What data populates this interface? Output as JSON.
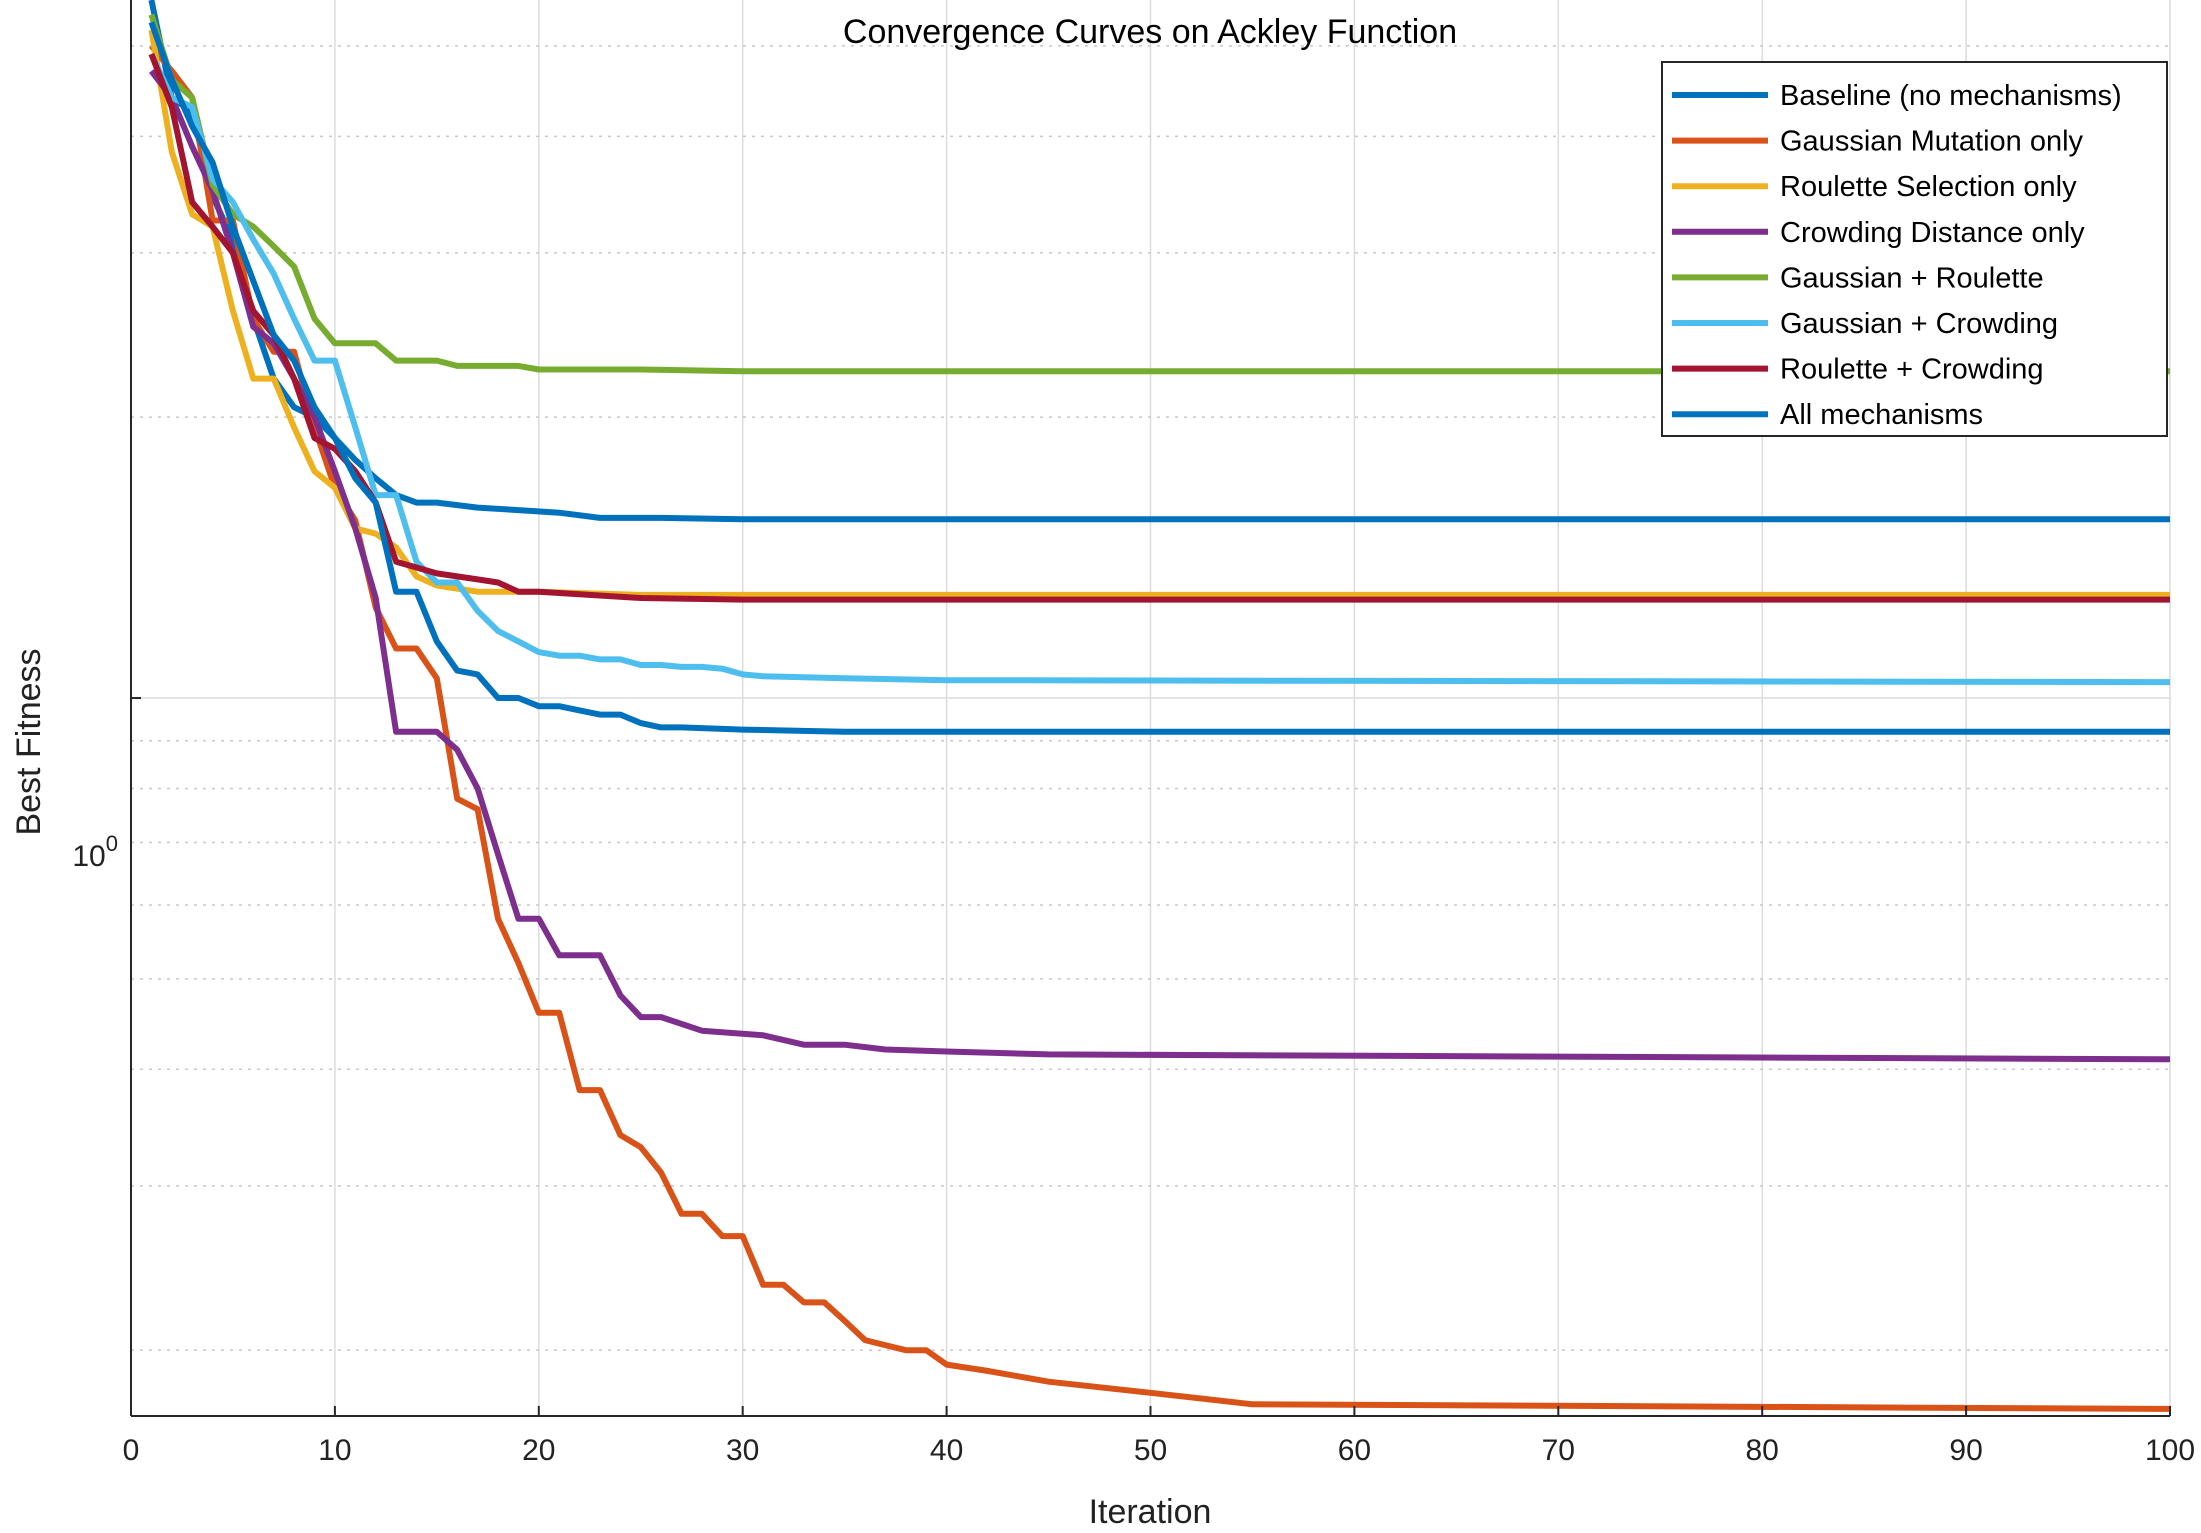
{
  "chart_data": {
    "type": "line",
    "title": "Convergence Curves on Ackley Function",
    "xlabel": "Iteration",
    "ylabel": "Best Fitness",
    "xlim": [
      0,
      100
    ],
    "ylim": [
      0.17,
      5.6
    ],
    "yscale": "log",
    "x_ticks": [
      0,
      10,
      20,
      30,
      40,
      50,
      60,
      70,
      80,
      90,
      100
    ],
    "y_tick_label": {
      "base": "10",
      "exponent": "0",
      "value": 1
    },
    "grid": true,
    "legend_position": "top-right",
    "series": [
      {
        "name": "Baseline (no mechanisms)",
        "color": "#0072BD",
        "x": [
          1,
          2,
          3,
          4,
          5,
          6,
          7,
          8,
          9,
          10,
          11,
          12,
          13,
          14,
          15,
          17,
          19,
          21,
          23,
          26,
          30,
          35,
          40,
          100
        ],
        "y": [
          5.6,
          4.4,
          4.25,
          3.45,
          3.1,
          2.55,
          2.2,
          2.05,
          2.0,
          1.9,
          1.8,
          1.72,
          1.65,
          1.62,
          1.62,
          1.6,
          1.59,
          1.58,
          1.56,
          1.56,
          1.555,
          1.555,
          1.555,
          1.555
        ]
      },
      {
        "name": "Gaussian Mutation only",
        "color": "#D95319",
        "x": [
          1,
          2,
          3,
          4,
          5,
          6,
          7,
          8,
          9,
          10,
          11,
          12,
          13,
          14,
          15,
          16,
          17,
          18,
          19,
          20,
          21,
          22,
          23,
          24,
          25,
          26,
          27,
          28,
          29,
          30,
          31,
          32,
          33,
          34,
          35,
          36,
          38,
          39,
          40,
          42,
          45,
          50,
          55,
          100
        ],
        "y": [
          5.0,
          4.7,
          4.4,
          3.25,
          3.25,
          2.55,
          2.35,
          2.35,
          1.95,
          1.68,
          1.55,
          1.25,
          1.13,
          1.13,
          1.05,
          0.78,
          0.76,
          0.58,
          0.52,
          0.46,
          0.46,
          0.38,
          0.38,
          0.34,
          0.33,
          0.31,
          0.28,
          0.28,
          0.265,
          0.265,
          0.235,
          0.235,
          0.225,
          0.225,
          0.215,
          0.205,
          0.2,
          0.2,
          0.193,
          0.19,
          0.185,
          0.18,
          0.175,
          0.173
        ]
      },
      {
        "name": "Roulette Selection only",
        "color": "#EDB120",
        "x": [
          1,
          2,
          3,
          4,
          5,
          6,
          7,
          8,
          9,
          10,
          11,
          12,
          13,
          14,
          15,
          16,
          17,
          20,
          25,
          100
        ],
        "y": [
          5.2,
          3.85,
          3.3,
          3.2,
          2.6,
          2.2,
          2.2,
          1.95,
          1.75,
          1.68,
          1.52,
          1.5,
          1.45,
          1.35,
          1.32,
          1.31,
          1.3,
          1.3,
          1.29,
          1.29
        ]
      },
      {
        "name": "Crowding Distance only",
        "color": "#7E2F8E",
        "x": [
          1,
          2,
          3,
          4,
          5,
          6,
          7,
          8,
          9,
          10,
          11,
          12,
          13,
          14,
          15,
          16,
          17,
          18,
          19,
          20,
          21,
          22,
          23,
          24,
          25,
          26,
          28,
          31,
          33,
          35,
          37,
          40,
          45,
          100
        ],
        "y": [
          4.7,
          4.4,
          3.9,
          3.5,
          3.0,
          2.5,
          2.4,
          2.2,
          2.0,
          1.75,
          1.52,
          1.28,
          0.92,
          0.92,
          0.92,
          0.88,
          0.8,
          0.68,
          0.58,
          0.58,
          0.53,
          0.53,
          0.53,
          0.48,
          0.455,
          0.455,
          0.44,
          0.435,
          0.425,
          0.425,
          0.42,
          0.418,
          0.415,
          0.41
        ]
      },
      {
        "name": "Gaussian + Roulette",
        "color": "#77AC30",
        "x": [
          1,
          2,
          3,
          4,
          5,
          6,
          7,
          8,
          9,
          10,
          11,
          12,
          13,
          14,
          15,
          16,
          17,
          18,
          19,
          20,
          25,
          30,
          100
        ],
        "y": [
          5.4,
          4.6,
          4.4,
          3.55,
          3.3,
          3.2,
          3.05,
          2.9,
          2.55,
          2.4,
          2.4,
          2.4,
          2.3,
          2.3,
          2.3,
          2.27,
          2.27,
          2.27,
          2.27,
          2.25,
          2.25,
          2.24,
          2.24
        ]
      },
      {
        "name": "Gaussian + Crowding",
        "color": "#4DBEEE",
        "x": [
          1,
          2,
          3,
          4,
          5,
          6,
          7,
          8,
          9,
          10,
          11,
          12,
          13,
          14,
          15,
          16,
          17,
          18,
          19,
          20,
          21,
          22,
          23,
          24,
          25,
          26,
          27,
          28,
          29,
          30,
          31,
          35,
          40,
          100
        ],
        "y": [
          4.9,
          4.4,
          4.3,
          3.6,
          3.4,
          3.1,
          2.85,
          2.55,
          2.3,
          2.3,
          1.95,
          1.65,
          1.65,
          1.4,
          1.33,
          1.33,
          1.24,
          1.18,
          1.15,
          1.12,
          1.11,
          1.11,
          1.1,
          1.1,
          1.085,
          1.085,
          1.08,
          1.08,
          1.075,
          1.06,
          1.055,
          1.05,
          1.045,
          1.04
        ]
      },
      {
        "name": "Roulette + Crowding",
        "color": "#A2142F",
        "x": [
          1,
          2,
          3,
          4,
          5,
          6,
          7,
          8,
          9,
          10,
          11,
          12,
          13,
          14,
          15,
          16,
          17,
          18,
          19,
          20,
          25,
          30,
          100
        ],
        "y": [
          4.9,
          4.3,
          3.4,
          3.2,
          3.0,
          2.6,
          2.45,
          2.2,
          1.9,
          1.85,
          1.75,
          1.62,
          1.4,
          1.38,
          1.36,
          1.35,
          1.34,
          1.33,
          1.3,
          1.3,
          1.28,
          1.275,
          1.275
        ]
      },
      {
        "name": "All mechanisms",
        "color": "#0072BD",
        "x": [
          1,
          2,
          3,
          4,
          5,
          6,
          7,
          8,
          9,
          10,
          11,
          12,
          13,
          14,
          15,
          16,
          17,
          18,
          19,
          20,
          21,
          22,
          23,
          24,
          25,
          26,
          27,
          30,
          35,
          100
        ],
        "y": [
          5.3,
          4.6,
          4.1,
          3.75,
          3.2,
          2.8,
          2.45,
          2.3,
          2.05,
          1.9,
          1.72,
          1.62,
          1.3,
          1.3,
          1.15,
          1.07,
          1.06,
          1.0,
          1.0,
          0.98,
          0.98,
          0.97,
          0.96,
          0.96,
          0.94,
          0.93,
          0.93,
          0.925,
          0.92,
          0.92
        ]
      }
    ]
  }
}
